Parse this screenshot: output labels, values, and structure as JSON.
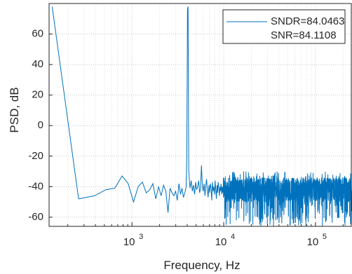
{
  "chart_data": {
    "type": "line",
    "xlabel": "Frequency, Hz",
    "ylabel": "PSD, dB",
    "xscale": "log",
    "xlim": [
      125,
      250000
    ],
    "ylim": [
      -66,
      80
    ],
    "yticks": [
      -60,
      -40,
      -20,
      0,
      20,
      40,
      60
    ],
    "yticklabels": [
      "-60",
      "-40",
      "-20",
      "0",
      "20",
      "40",
      "60"
    ],
    "xticks": [
      1000,
      10000,
      100000
    ],
    "xticklabels": [
      {
        "base": "10",
        "exp": "3"
      },
      {
        "base": "10",
        "exp": "4"
      },
      {
        "base": "10",
        "exp": "5"
      }
    ],
    "grid": "on (major and minor, dotted)",
    "legend": {
      "location": "top-right",
      "entries": [
        "SNDR=84.0463",
        "SNR=84.1108"
      ]
    },
    "line_color": "#0072bd",
    "series": [
      {
        "values_note_free": true,
        "x": [
          135,
          262,
          390,
          520,
          650,
          780,
          910,
          1040,
          1170,
          1300,
          1430,
          1560,
          1690,
          1820,
          1950,
          2080,
          2210,
          2340,
          2470,
          2600,
          2730,
          2860,
          2990,
          3120,
          3250,
          3380,
          3510,
          3640,
          3770,
          3900,
          3960,
          4030,
          4090,
          4160,
          4290,
          4420,
          4550,
          4680,
          4810,
          4940,
          5070,
          5200,
          5330,
          5460,
          5590,
          5720,
          5850,
          5980,
          6110,
          6240,
          6370,
          6500,
          6630,
          6760,
          6890,
          7020,
          7150,
          7280,
          7410,
          7540,
          7670,
          7800,
          7930,
          8060,
          8190,
          8320,
          8450,
          8580,
          8710,
          8840,
          8970,
          9100,
          9230,
          9360,
          9490,
          9620,
          9750,
          9880
        ],
        "y": [
          78,
          -48,
          -46,
          -42,
          -41,
          -33,
          -38,
          -50,
          -40,
          -37,
          -44,
          -42,
          -38,
          -48,
          -40,
          -46,
          -39,
          -43,
          -57,
          -41,
          -44,
          -46,
          -43,
          -49,
          -38,
          -45,
          -41,
          -47,
          -44,
          -40,
          -20,
          76,
          78,
          -30,
          -41,
          -36,
          -43,
          -39,
          -45,
          -37,
          -42,
          -40,
          -36,
          -44,
          -41,
          -26,
          -40,
          -43,
          -38,
          -46,
          -40,
          -35,
          -42,
          -47,
          -39,
          -44,
          -38,
          -41,
          -49,
          -37,
          -43,
          -40,
          -45,
          -36,
          -42,
          -48,
          -39,
          -44,
          -37,
          -41,
          -46,
          -40,
          -43,
          -38,
          -45,
          -40,
          -44,
          -39
        ]
      }
    ]
  }
}
